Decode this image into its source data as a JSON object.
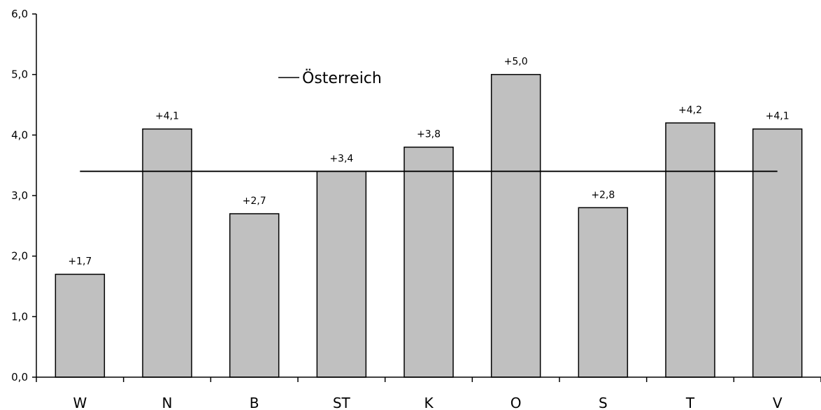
{
  "chart_data": {
    "type": "bar",
    "categories": [
      "W",
      "N",
      "B",
      "ST",
      "K",
      "O",
      "S",
      "T",
      "V"
    ],
    "values": [
      1.7,
      4.1,
      2.7,
      3.4,
      3.8,
      5.0,
      2.8,
      4.2,
      4.1
    ],
    "data_labels": [
      "+1,7",
      "+4,1",
      "+2,7",
      "+3,4",
      "+3,8",
      "+5,0",
      "+2,8",
      "+4,2",
      "+4,1"
    ],
    "ylim": [
      0,
      6
    ],
    "yticks": [
      0,
      1,
      2,
      3,
      4,
      5,
      6
    ],
    "ytick_labels": [
      "0,0",
      "1,0",
      "2,0",
      "3,0",
      "4,0",
      "5,0",
      "6,0"
    ],
    "reference_line": {
      "name": "Österreich",
      "value": 3.4
    },
    "legend_position": "top-center",
    "grid": false,
    "colors": {
      "bar_fill": "#c0c0c0",
      "bar_stroke": "#000000",
      "line": "#000000"
    }
  }
}
